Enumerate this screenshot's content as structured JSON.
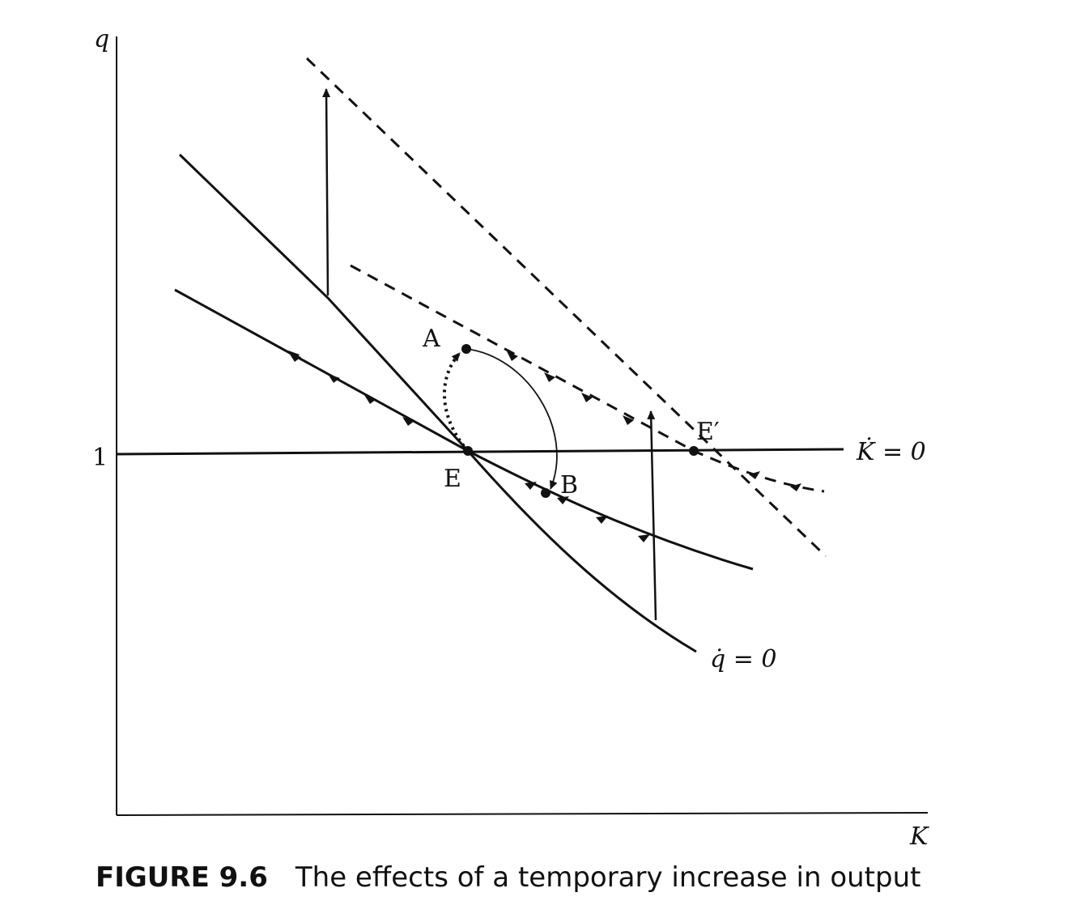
{
  "axes": {
    "y_label": "q",
    "x_label": "K",
    "y_tick_one": "1"
  },
  "curves": {
    "k_dot_label": "K̇ = 0",
    "q_dot_label": "q̇ = 0"
  },
  "points": {
    "E": "E",
    "E_prime": "E′",
    "A": "A",
    "B": "B"
  },
  "caption": {
    "number": "FIGURE 9.6",
    "title": "The effects of a temporary increase in output"
  }
}
